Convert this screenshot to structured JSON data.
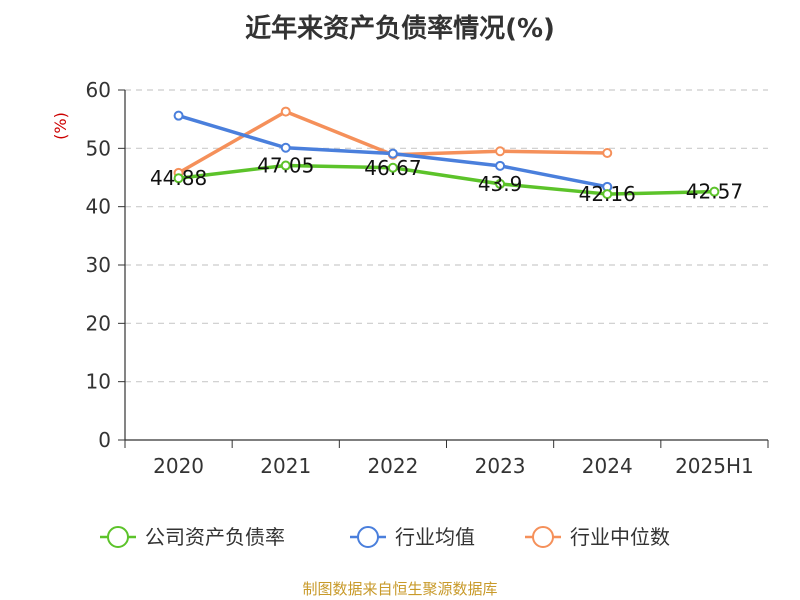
{
  "chart_data": {
    "type": "line",
    "title": "近年来资产负债率情况(%)",
    "ylabel": "(%)",
    "xlabel": "",
    "categories": [
      "2020",
      "2021",
      "2022",
      "2023",
      "2024",
      "2025H1"
    ],
    "ylim": [
      0,
      60
    ],
    "yticks": [
      0,
      10,
      20,
      30,
      40,
      50,
      60
    ],
    "grid": true,
    "legend_position": "bottom",
    "series": [
      {
        "name": "公司资产负债率",
        "color": "#5cc32a",
        "values": [
          44.88,
          47.05,
          46.67,
          43.9,
          42.16,
          42.57
        ],
        "labels": [
          "44.88",
          "47.05",
          "46.67",
          "43.9",
          "42.16",
          "42.57"
        ]
      },
      {
        "name": "行业均值",
        "color": "#4a7fdc",
        "values": [
          55.6,
          50.1,
          49.1,
          47.0,
          43.4,
          null
        ]
      },
      {
        "name": "行业中位数",
        "color": "#f5905a",
        "values": [
          45.8,
          56.3,
          48.9,
          49.5,
          49.2,
          null
        ]
      }
    ]
  },
  "footer": {
    "source": "制图数据来自恒生聚源数据库"
  }
}
